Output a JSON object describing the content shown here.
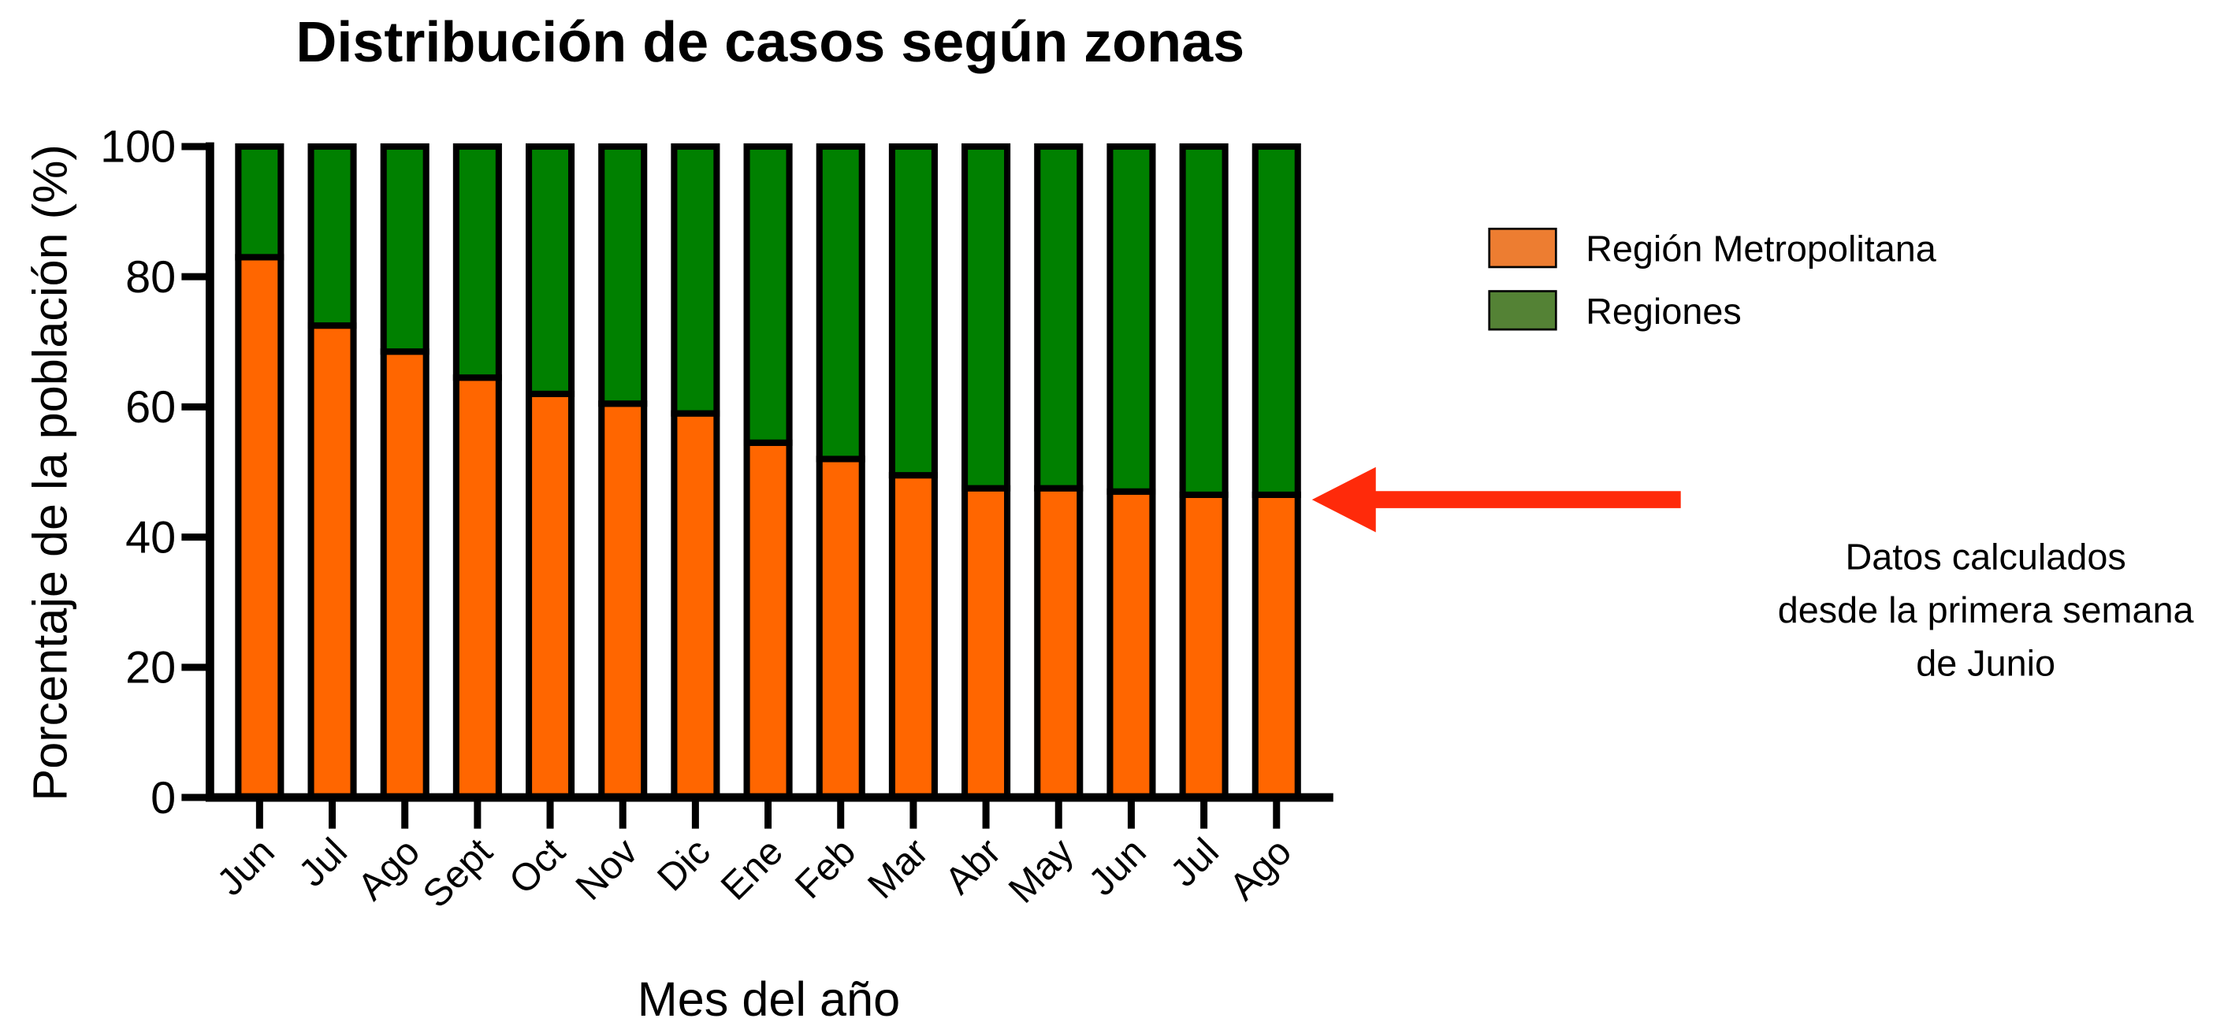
{
  "chart_data": {
    "type": "stacked_bar",
    "title": "Distribución de casos según zonas",
    "x_label": "Mes del año",
    "y_label": "Porcentaje de la población (%)",
    "categories": [
      "Jun",
      "Jul",
      "Ago",
      "Sept",
      "Oct",
      "Nov",
      "Dic",
      "Ene",
      "Feb",
      "Mar",
      "Abr",
      "May",
      "Jun",
      "Jul",
      "Ago"
    ],
    "series": [
      {
        "name": "Región Metropolitana",
        "color": "#ff6600",
        "legend_color": "#ed7d31",
        "values": [
          83,
          72.5,
          68.5,
          64.5,
          62,
          60.5,
          59,
          54.5,
          52,
          49.5,
          47.5,
          47.5,
          47,
          46.5,
          46.5
        ]
      },
      {
        "name": "Regiones",
        "color": "#008000",
        "legend_color": "#548235",
        "values": [
          17,
          27.5,
          31.5,
          35.5,
          38,
          39.5,
          41,
          45.5,
          48,
          50.5,
          52.5,
          52.5,
          53,
          53.5,
          53.5
        ]
      }
    ],
    "ylim": [
      0,
      100
    ],
    "yticks": [
      0,
      20,
      40,
      60,
      80,
      100
    ],
    "annotation": [
      "Datos calculados",
      "desde la primera semana",
      "de Junio"
    ]
  }
}
